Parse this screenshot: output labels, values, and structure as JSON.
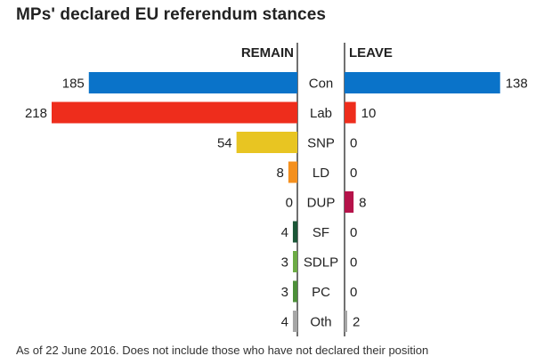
{
  "title": "MPs' declared EU referendum stances",
  "footnote": "As of 22 June 2016. Does not include those who have not declared their position",
  "chart_data": {
    "type": "bar",
    "orientation": "horizontal-diverging",
    "title": "MPs' declared EU referendum stances",
    "categories": [
      "Con",
      "Lab",
      "SNP",
      "LD",
      "DUP",
      "SF",
      "SDLP",
      "PC",
      "Oth"
    ],
    "series": [
      {
        "name": "REMAIN",
        "values": [
          185,
          218,
          54,
          8,
          0,
          4,
          3,
          3,
          4
        ]
      },
      {
        "name": "LEAVE",
        "values": [
          138,
          10,
          0,
          0,
          8,
          0,
          0,
          0,
          2
        ]
      }
    ],
    "colors": [
      "#0a73c9",
      "#ee2d1c",
      "#e8c522",
      "#f4901e",
      "#b5134a",
      "#1b5637",
      "#6dab46",
      "#4d8f3a",
      "#a6a6a6"
    ],
    "xlim": [
      0,
      218
    ],
    "grid": false,
    "legend": "none"
  }
}
